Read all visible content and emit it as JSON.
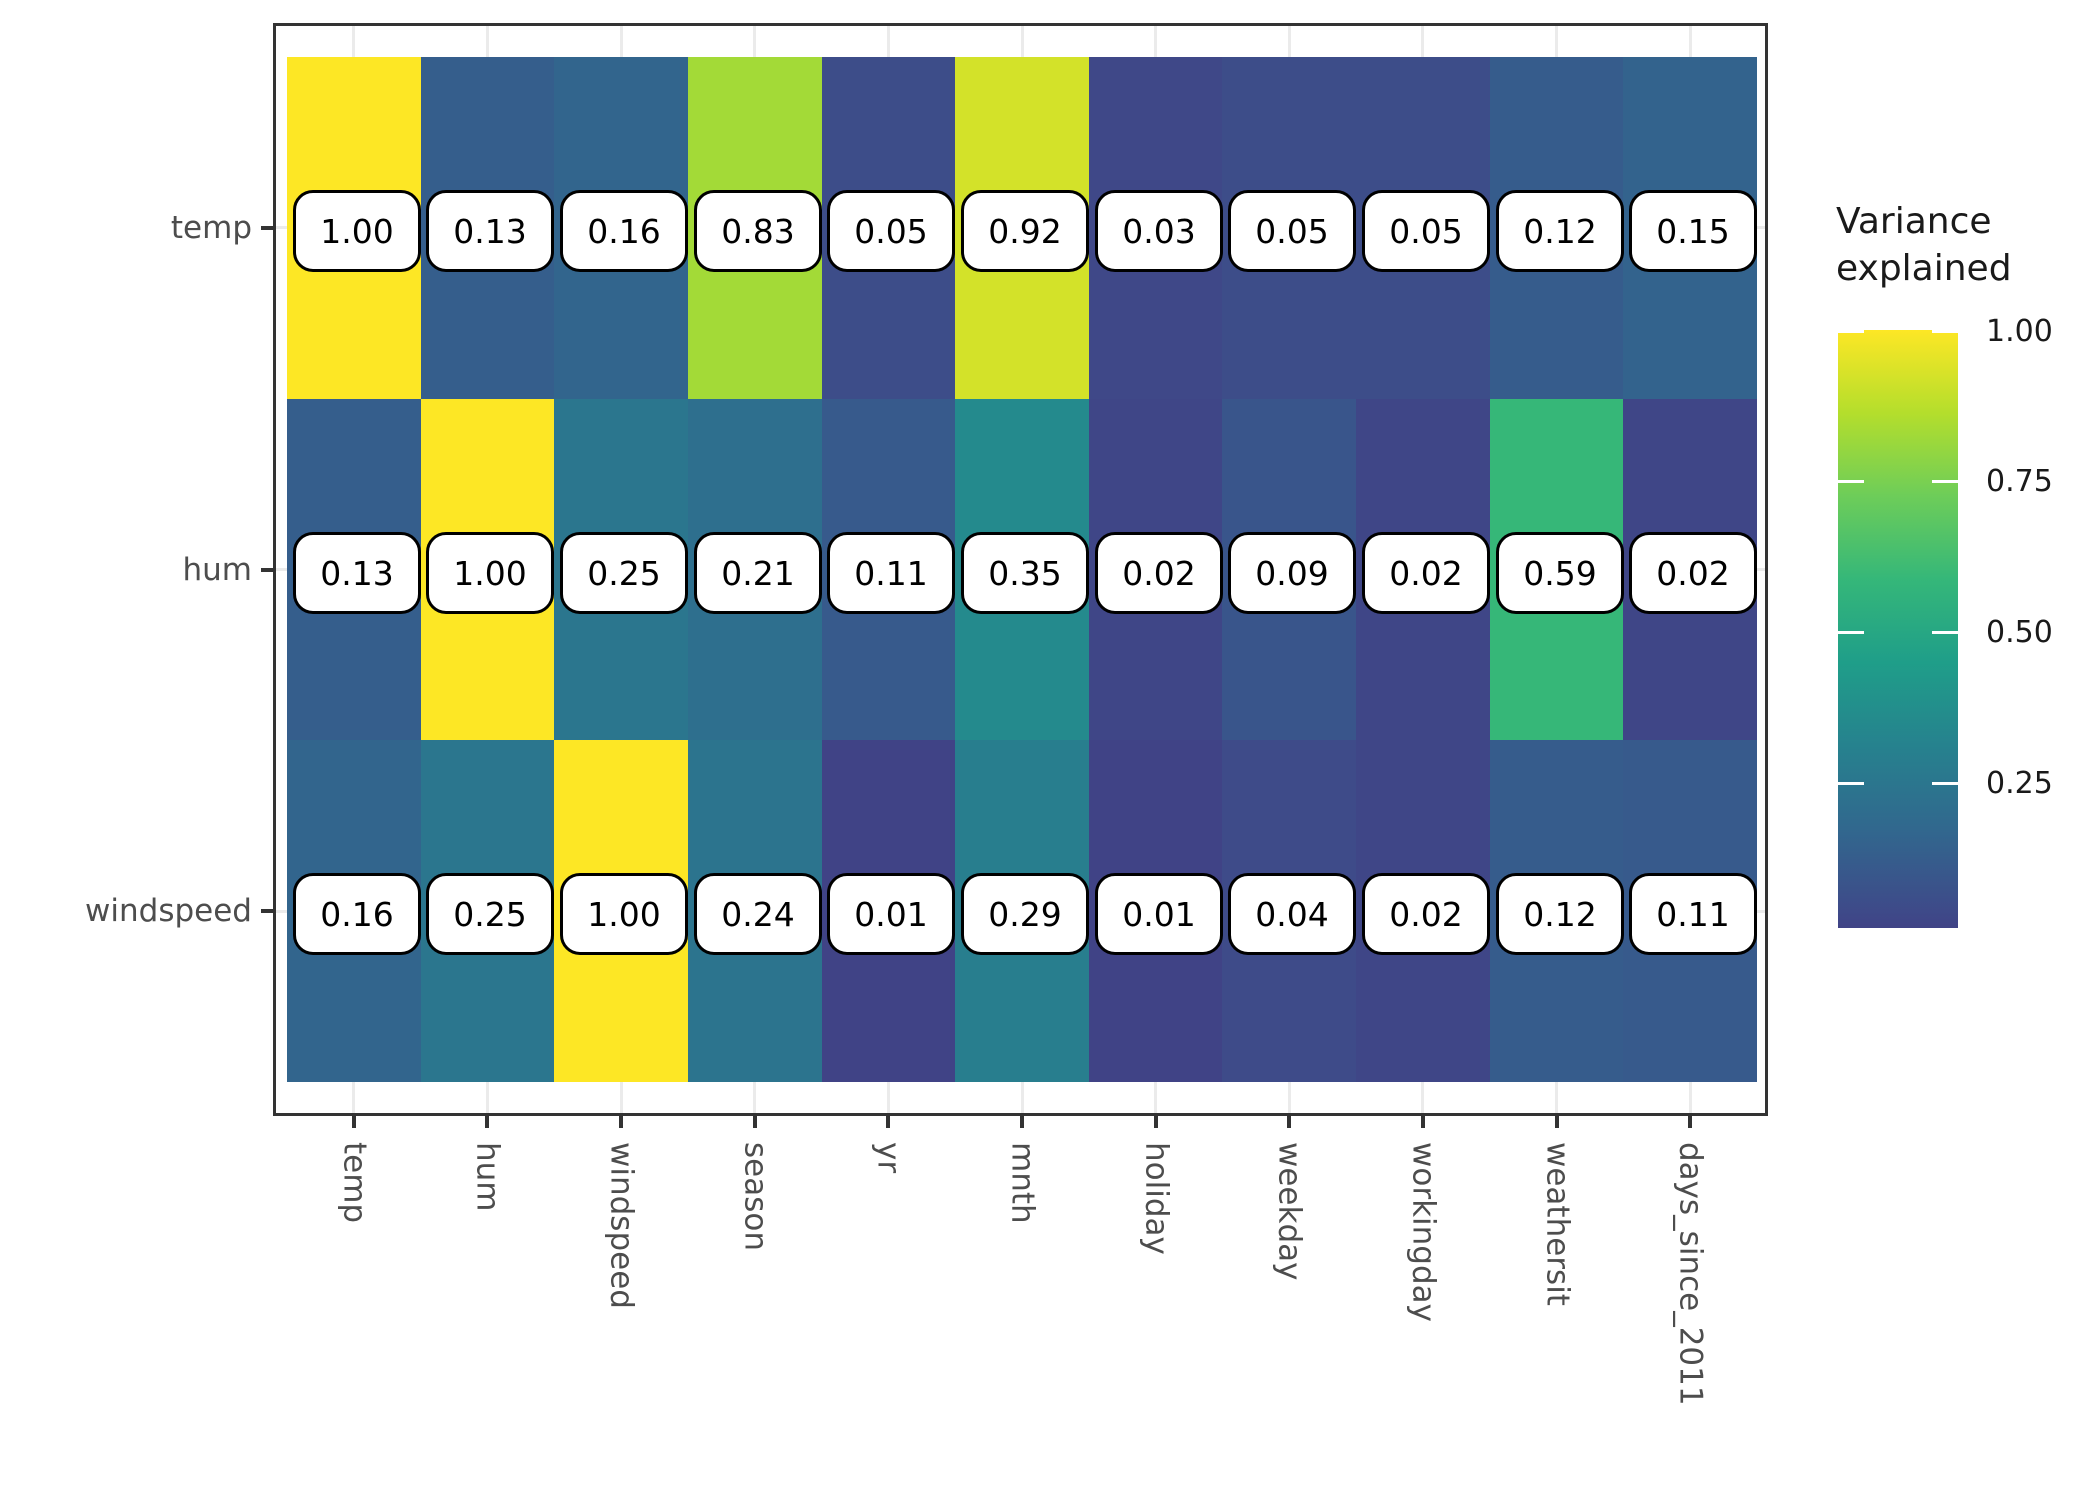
{
  "chart_data": {
    "type": "heatmap",
    "title": "",
    "x_categories": [
      "temp",
      "hum",
      "windspeed",
      "season",
      "yr",
      "mnth",
      "holiday",
      "weekday",
      "workingday",
      "weathersit",
      "days_since_2011"
    ],
    "y_categories": [
      "temp",
      "hum",
      "windspeed"
    ],
    "series": [
      {
        "name": "temp",
        "values": [
          1.0,
          0.13,
          0.16,
          0.83,
          0.05,
          0.92,
          0.03,
          0.05,
          0.05,
          0.12,
          0.15
        ]
      },
      {
        "name": "hum",
        "values": [
          0.13,
          1.0,
          0.25,
          0.21,
          0.11,
          0.35,
          0.02,
          0.09,
          0.02,
          0.59,
          0.02
        ]
      },
      {
        "name": "windspeed",
        "values": [
          0.16,
          0.25,
          1.0,
          0.24,
          0.01,
          0.29,
          0.01,
          0.04,
          0.02,
          0.12,
          0.11
        ]
      }
    ],
    "value_format_decimals": 2,
    "legend": {
      "title": "Variance explained",
      "tick_labels": [
        "1.00",
        "0.75",
        "0.50",
        "0.25"
      ],
      "tick_values": [
        1.0,
        0.75,
        0.5,
        0.25
      ],
      "domain": [
        0.01,
        1.0
      ]
    },
    "colormap": {
      "name": "viridis",
      "stops": [
        "#440154",
        "#482878",
        "#3E4A89",
        "#31688E",
        "#26828E",
        "#1F9E89",
        "#35B779",
        "#6DCD59",
        "#B4DE2C",
        "#FDE725"
      ],
      "t_min": 0.2,
      "t_max": 1.0
    },
    "layout": {
      "grid": "on",
      "legend_position": "right",
      "x_label_angle_deg": 90
    },
    "colors": {
      "background": "#FFFFFF",
      "panel_border": "#333333",
      "grid": "#EBEBEB",
      "axis_text": "#4D4D4D",
      "tick_mark": "#333333",
      "cell_label_bg": "#FFFFFF",
      "cell_label_border": "#000000",
      "cell_label_text": "#000000",
      "legend_text": "#1A1A1A"
    }
  }
}
